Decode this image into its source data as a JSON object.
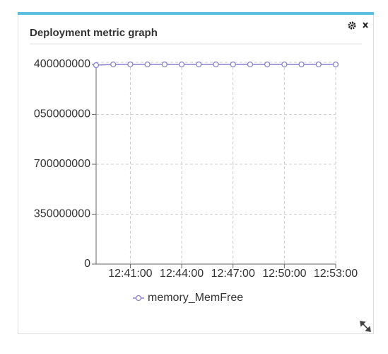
{
  "widget_title": "Deployment metric graph",
  "chart_data": {
    "type": "line",
    "x": [
      "12:39:00",
      "12:40:00",
      "12:41:00",
      "12:42:00",
      "12:43:00",
      "12:44:00",
      "12:45:00",
      "12:46:00",
      "12:47:00",
      "12:48:00",
      "12:49:00",
      "12:50:00",
      "12:51:00",
      "12:52:00",
      "12:53:00"
    ],
    "series": [
      {
        "name": "memory_MemFree",
        "color": "#8b80cf",
        "values": [
          1395000000,
          1400000000,
          1400000000,
          1400000000,
          1400000000,
          1400000000,
          1400000000,
          1400000000,
          1400000000,
          1400000000,
          1400000000,
          1400000000,
          1400000000,
          1400000000,
          1400000000
        ]
      }
    ],
    "xlim": [
      "12:39:00",
      "12:53:00"
    ],
    "xticks": [
      "12:41:00",
      "12:44:00",
      "12:47:00",
      "12:50:00",
      "12:53:00"
    ],
    "ylim": [
      0,
      1400000000
    ],
    "yticks": [
      0,
      350000000,
      700000000,
      {
        "value": 1050000000,
        "label": "050000000"
      },
      {
        "value": 1400000000,
        "label": "400000000"
      }
    ],
    "grid": true
  }
}
